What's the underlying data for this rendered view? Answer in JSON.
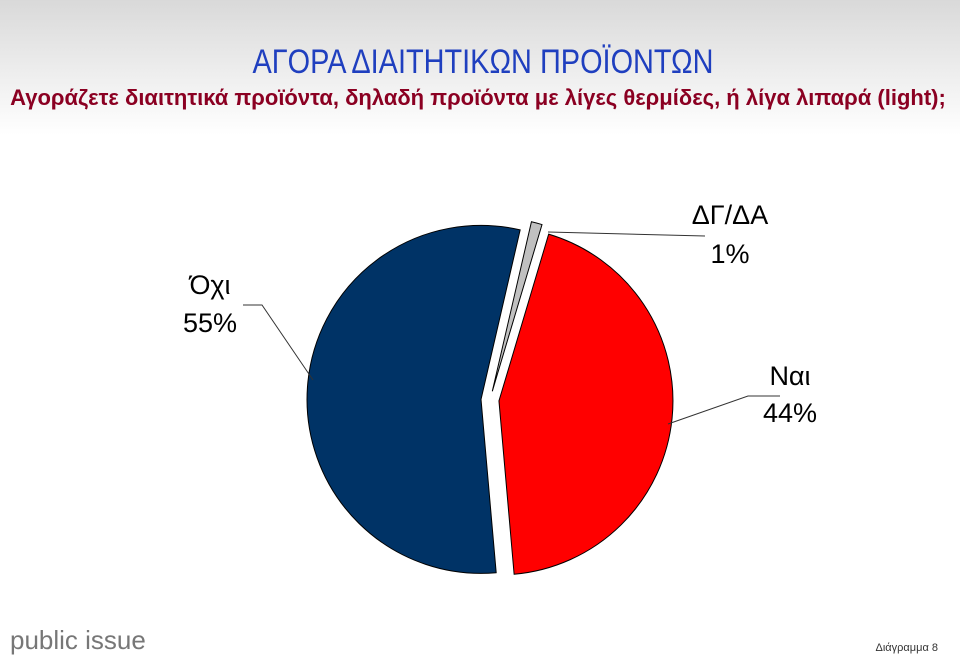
{
  "chart_data": {
    "type": "pie",
    "title": "ΑΓΟΡΑ ΔΙΑΙΤΗΤΙΚΩΝ ΠΡΟΪΟΝΤΩΝ",
    "subtitle": "Αγοράζετε διαιτητικά προϊόντα, δηλαδή προϊόντα με λίγες θερμίδες, ή λίγα λιπαρά (light);",
    "categories": [
      "Όχι",
      "ΔΓ/ΔΑ",
      "Ναι"
    ],
    "values": [
      55,
      1,
      44
    ],
    "value_labels": [
      "55%",
      "1%",
      "44%"
    ],
    "colors": [
      "#003366",
      "#c0c0c0",
      "#ff0000"
    ]
  },
  "footer": {
    "brand": "public issue",
    "page": "Διάγραμμα 8"
  }
}
